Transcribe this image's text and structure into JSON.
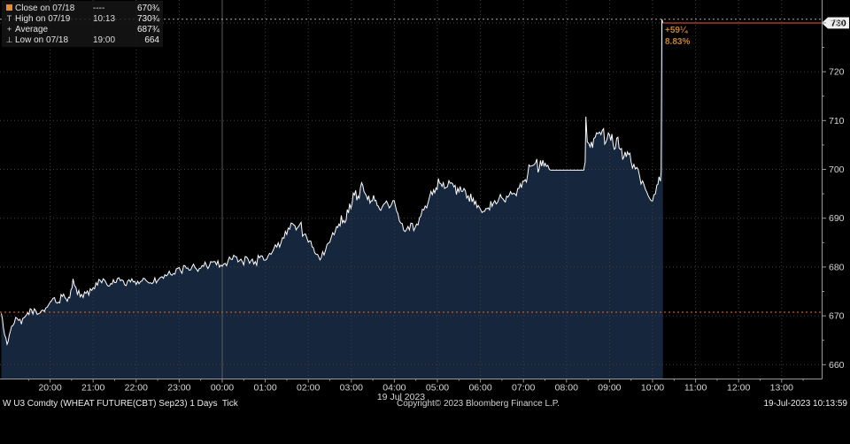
{
  "legend": {
    "rows": [
      {
        "marker": "close-square",
        "glyph": "",
        "label": "Close on 07/18",
        "time": "----",
        "value": "670¾"
      },
      {
        "marker": "high-tick",
        "glyph": "T",
        "label": "High on 07/19",
        "time": "10:13",
        "value": "730¾"
      },
      {
        "marker": "average-mark",
        "glyph": "+",
        "label": "Average",
        "time": "",
        "value": "687¾"
      },
      {
        "marker": "low-tick",
        "glyph": "⊥",
        "label": "Low on 07/18",
        "time": "19:00",
        "value": "664"
      }
    ]
  },
  "annotation": {
    "change": "+59¼",
    "percent": "8.83%"
  },
  "footer": {
    "security_line": "W U3 Comdty (WHEAT FUTURE(CBT) Sep23) 1 Days  Tick",
    "copyright": "Copyright© 2023 Bloomberg Finance L.P.",
    "timestamp": "19-Jul-2023 10:13:59"
  },
  "colors": {
    "background": "#000000",
    "area_fill": "#16263c",
    "price_line": "#ffffff",
    "close_line": "#c45a28",
    "high_line": "#adadad",
    "last_line": "#7d2b1e",
    "grid": "#3f3f3f",
    "grid_solid": "#5c5c5c",
    "axis": "#9a9a9a",
    "axis_text": "#d6d6d6",
    "tag_bg": "#f0f0f0",
    "tag_text": "#000000",
    "annotation_text": "#c9812c",
    "legend_square": "#e78c35"
  },
  "chart_data": {
    "type": "area",
    "title": "W U3 Comdty (WHEAT FUTURE(CBT) Sep23) 1 Days Tick",
    "x_axis": {
      "unit": "minutes since 07/18 19:00",
      "date_label": "19 Jul 2023",
      "minor_step_min": 30,
      "ticks": [
        {
          "t": 60,
          "label": "20:00"
        },
        {
          "t": 120,
          "label": "21:00"
        },
        {
          "t": 180,
          "label": "22:00"
        },
        {
          "t": 240,
          "label": "23:00"
        },
        {
          "t": 300,
          "label": "00:00"
        },
        {
          "t": 360,
          "label": "01:00"
        },
        {
          "t": 420,
          "label": "02:00"
        },
        {
          "t": 480,
          "label": "03:00"
        },
        {
          "t": 540,
          "label": "04:00"
        },
        {
          "t": 600,
          "label": "05:00"
        },
        {
          "t": 660,
          "label": "06:00"
        },
        {
          "t": 720,
          "label": "07:00"
        },
        {
          "t": 780,
          "label": "08:00"
        },
        {
          "t": 840,
          "label": "09:00"
        },
        {
          "t": 900,
          "label": "10:00"
        },
        {
          "t": 960,
          "label": "11:00"
        },
        {
          "t": 1020,
          "label": "12:00"
        },
        {
          "t": 1080,
          "label": "13:00"
        }
      ]
    },
    "y_axis": {
      "min": 656,
      "max": 735,
      "ticks": [
        660,
        670,
        680,
        690,
        700,
        710,
        720,
        730
      ],
      "minor_step": 5,
      "last_price_tag": "730"
    },
    "reference_lines": {
      "close_prev": 670.75,
      "high": 730.75,
      "low": 664,
      "average": 687.75,
      "last": 730
    },
    "series": [
      {
        "name": "last-trade-ticks",
        "point_format": "[minutes, price, tick_noise_amplitude]",
        "points": [
          [
            -8,
            670.5,
            0.7
          ],
          [
            -5,
            667.5,
            0.6
          ],
          [
            0,
            664.2,
            0.5
          ],
          [
            3,
            666.0,
            0.6
          ],
          [
            8,
            668.0,
            0.7
          ],
          [
            14,
            669.5,
            0.7
          ],
          [
            20,
            668.3,
            0.7
          ],
          [
            27,
            670.2,
            0.7
          ],
          [
            34,
            671.3,
            0.7
          ],
          [
            42,
            670.3,
            0.7
          ],
          [
            50,
            671.2,
            0.8
          ],
          [
            58,
            672.3,
            0.8
          ],
          [
            64,
            673.6,
            0.9
          ],
          [
            70,
            672.6,
            0.8
          ],
          [
            77,
            674.0,
            0.9
          ],
          [
            84,
            673.0,
            0.8
          ],
          [
            89,
            675.3,
            1.0
          ],
          [
            92,
            677.6,
            1.1
          ],
          [
            96,
            675.8,
            0.9
          ],
          [
            102,
            673.9,
            0.8
          ],
          [
            110,
            674.6,
            0.8
          ],
          [
            118,
            675.2,
            0.8
          ],
          [
            126,
            676.3,
            0.9
          ],
          [
            134,
            677.6,
            1.0
          ],
          [
            141,
            676.1,
            0.8
          ],
          [
            150,
            676.8,
            0.8
          ],
          [
            158,
            677.2,
            0.8
          ],
          [
            166,
            676.2,
            0.8
          ],
          [
            174,
            677.6,
            0.9
          ],
          [
            182,
            677.1,
            0.8
          ],
          [
            192,
            677.6,
            0.8
          ],
          [
            202,
            676.6,
            0.8
          ],
          [
            212,
            677.6,
            0.8
          ],
          [
            222,
            678.2,
            0.9
          ],
          [
            232,
            678.7,
            0.9
          ],
          [
            242,
            679.2,
            0.9
          ],
          [
            252,
            679.8,
            0.9
          ],
          [
            260,
            680.6,
            1.0
          ],
          [
            268,
            679.7,
            0.9
          ],
          [
            278,
            680.3,
            0.9
          ],
          [
            290,
            681.1,
            0.9
          ],
          [
            302,
            680.6,
            0.9
          ],
          [
            312,
            681.6,
            0.9
          ],
          [
            320,
            682.1,
            1.0
          ],
          [
            328,
            681.1,
            0.9
          ],
          [
            336,
            681.6,
            0.9
          ],
          [
            344,
            680.6,
            0.9
          ],
          [
            352,
            681.9,
            1.0
          ],
          [
            360,
            681.4,
            0.9
          ],
          [
            368,
            682.6,
            1.0
          ],
          [
            376,
            684.1,
            1.0
          ],
          [
            384,
            686.0,
            1.1
          ],
          [
            392,
            688.0,
            1.2
          ],
          [
            398,
            688.9,
            1.2
          ],
          [
            403,
            687.6,
            1.1
          ],
          [
            408,
            688.7,
            1.2
          ],
          [
            414,
            686.7,
            1.0
          ],
          [
            420,
            685.1,
            1.0
          ],
          [
            427,
            684.0,
            1.0
          ],
          [
            433,
            682.6,
            1.0
          ],
          [
            438,
            681.9,
            1.0
          ],
          [
            444,
            683.4,
            1.0
          ],
          [
            450,
            685.1,
            1.1
          ],
          [
            456,
            686.6,
            1.2
          ],
          [
            461,
            688.1,
            1.3
          ],
          [
            466,
            690.6,
            1.5
          ],
          [
            471,
            689.1,
            1.3
          ],
          [
            476,
            691.1,
            1.5
          ],
          [
            481,
            692.9,
            1.5
          ],
          [
            486,
            695.7,
            1.7
          ],
          [
            491,
            694.1,
            1.4
          ],
          [
            496,
            696.7,
            1.7
          ],
          [
            501,
            694.6,
            1.4
          ],
          [
            506,
            693.1,
            1.3
          ],
          [
            511,
            694.7,
            1.4
          ],
          [
            516,
            692.6,
            1.2
          ],
          [
            521,
            691.6,
            1.2
          ],
          [
            527,
            693.1,
            1.2
          ],
          [
            533,
            692.1,
            1.2
          ],
          [
            538,
            693.6,
            1.2
          ],
          [
            545,
            690.9,
            1.1
          ],
          [
            551,
            688.9,
            1.0
          ],
          [
            557,
            687.7,
            1.0
          ],
          [
            563,
            689.0,
            1.0
          ],
          [
            569,
            688.1,
            1.0
          ],
          [
            575,
            690.1,
            1.1
          ],
          [
            581,
            691.7,
            1.2
          ],
          [
            587,
            693.2,
            1.2
          ],
          [
            593,
            694.8,
            1.3
          ],
          [
            598,
            696.2,
            1.3
          ],
          [
            603,
            697.2,
            1.4
          ],
          [
            610,
            696.1,
            1.3
          ],
          [
            616,
            697.7,
            1.4
          ],
          [
            623,
            696.4,
            1.2
          ],
          [
            630,
            695.4,
            1.2
          ],
          [
            637,
            696.1,
            1.2
          ],
          [
            643,
            694.6,
            1.1
          ],
          [
            650,
            694.1,
            1.1
          ],
          [
            657,
            692.6,
            1.0
          ],
          [
            664,
            691.4,
            1.0
          ],
          [
            671,
            692.1,
            1.0
          ],
          [
            678,
            693.1,
            1.0
          ],
          [
            686,
            694.1,
            1.0
          ],
          [
            693,
            693.6,
            1.0
          ],
          [
            700,
            694.7,
            1.1
          ],
          [
            706,
            695.1,
            1.1
          ],
          [
            712,
            696.1,
            1.2
          ],
          [
            719,
            697.6,
            1.3
          ],
          [
            726,
            699.1,
            1.4
          ],
          [
            731,
            700.7,
            1.5
          ],
          [
            737,
            701.4,
            1.5
          ],
          [
            742,
            700.1,
            1.3
          ],
          [
            747,
            701.9,
            1.4
          ],
          [
            752,
            700.6,
            1.2
          ],
          [
            756,
            700.0,
            0.3
          ],
          [
            758,
            699.85,
            0
          ],
          [
            804,
            699.85,
            0
          ],
          [
            806,
            701.5,
            0.5
          ],
          [
            807,
            710.8,
            0.3
          ],
          [
            809,
            705.6,
            1.4
          ],
          [
            813,
            704.6,
            1.4
          ],
          [
            818,
            706.3,
            1.7
          ],
          [
            824,
            707.3,
            1.7
          ],
          [
            830,
            708.0,
            1.7
          ],
          [
            835,
            705.6,
            1.5
          ],
          [
            840,
            707.1,
            1.6
          ],
          [
            845,
            705.1,
            1.5
          ],
          [
            850,
            706.4,
            1.7
          ],
          [
            855,
            704.1,
            1.4
          ],
          [
            860,
            702.6,
            1.3
          ],
          [
            865,
            703.6,
            1.4
          ],
          [
            870,
            701.6,
            1.2
          ],
          [
            876,
            700.1,
            1.1
          ],
          [
            882,
            698.6,
            1.1
          ],
          [
            888,
            696.9,
            1.0
          ],
          [
            894,
            694.6,
            0.9
          ],
          [
            898,
            693.6,
            0.8
          ],
          [
            902,
            694.8,
            0.9
          ],
          [
            906,
            696.8,
            1.0
          ],
          [
            909,
            698.5,
            0.9
          ],
          [
            911,
            697.6,
            0.6
          ],
          [
            912,
            699.5,
            0.3
          ],
          [
            913,
            730.75,
            0
          ],
          [
            914.5,
            730.0,
            0
          ]
        ]
      }
    ]
  }
}
